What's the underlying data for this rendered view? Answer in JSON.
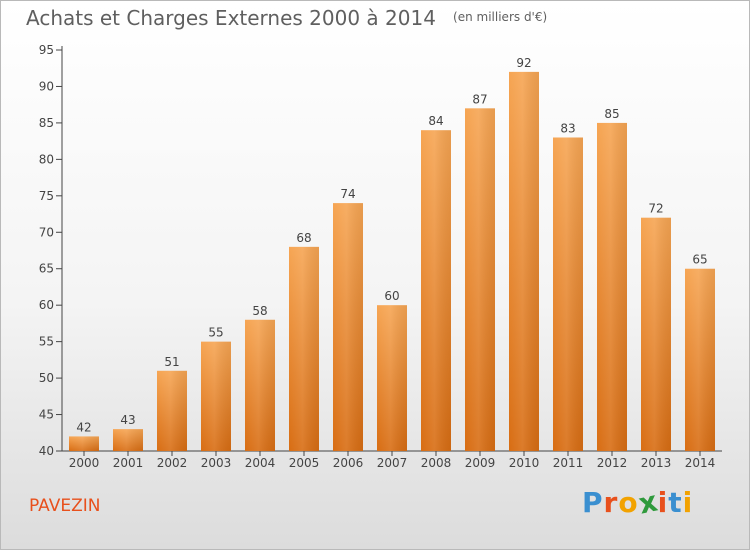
{
  "chart_data": {
    "type": "bar",
    "title": "Achats et Charges Externes 2000 à 2014",
    "subtitle": "(en milliers d'€)",
    "xlabel": "",
    "ylabel": "",
    "categories": [
      "2000",
      "2001",
      "2002",
      "2003",
      "2004",
      "2005",
      "2006",
      "2007",
      "2008",
      "2009",
      "2010",
      "2011",
      "2012",
      "2013",
      "2014"
    ],
    "values": [
      42,
      43,
      51,
      55,
      58,
      68,
      74,
      60,
      84,
      87,
      92,
      83,
      85,
      72,
      65
    ],
    "ylim": [
      40,
      95
    ],
    "yticks": [
      40,
      45,
      50,
      55,
      60,
      65,
      70,
      75,
      80,
      85,
      90,
      95
    ],
    "grid": false,
    "bar_color_top": "#f6a553",
    "bar_color_bottom": "#d86d13"
  },
  "commune": "PAVEZIN",
  "logo": {
    "letters": [
      "P",
      "r",
      "o",
      "x",
      "i",
      "t",
      "i"
    ],
    "colors": [
      "#3a8fd0",
      "#e8501c",
      "#f2a200",
      "#2f9a3c",
      "#e8501c",
      "#3a8fd0",
      "#f2a200"
    ]
  }
}
